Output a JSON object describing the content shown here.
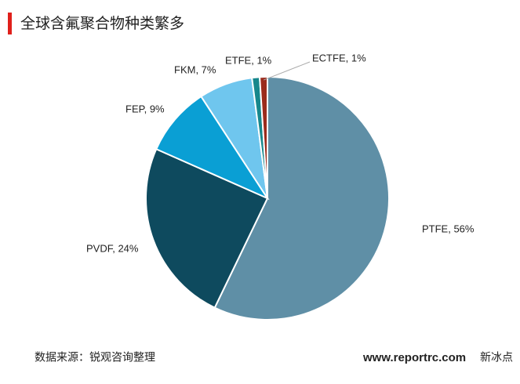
{
  "chart_data": {
    "type": "pie",
    "title": "全球含氟聚合物种类繁多",
    "values": [
      56,
      24,
      9,
      7,
      1,
      1
    ],
    "value_labels": [
      "PTFE, 56%",
      "PVDF, 24%",
      "FEP, 9%",
      "FKM, 7%",
      "ETFE, 1%",
      "ECTFE, 1%"
    ],
    "colors": [
      "#5f8fa6",
      "#0e4a5e",
      "#0a9fd4",
      "#6fc6ee",
      "#17878c",
      "#9b2b1c"
    ],
    "source": "数据来源：锐观咨询整理",
    "watermark": "www.reportrc.com",
    "badge": "新冰点"
  }
}
